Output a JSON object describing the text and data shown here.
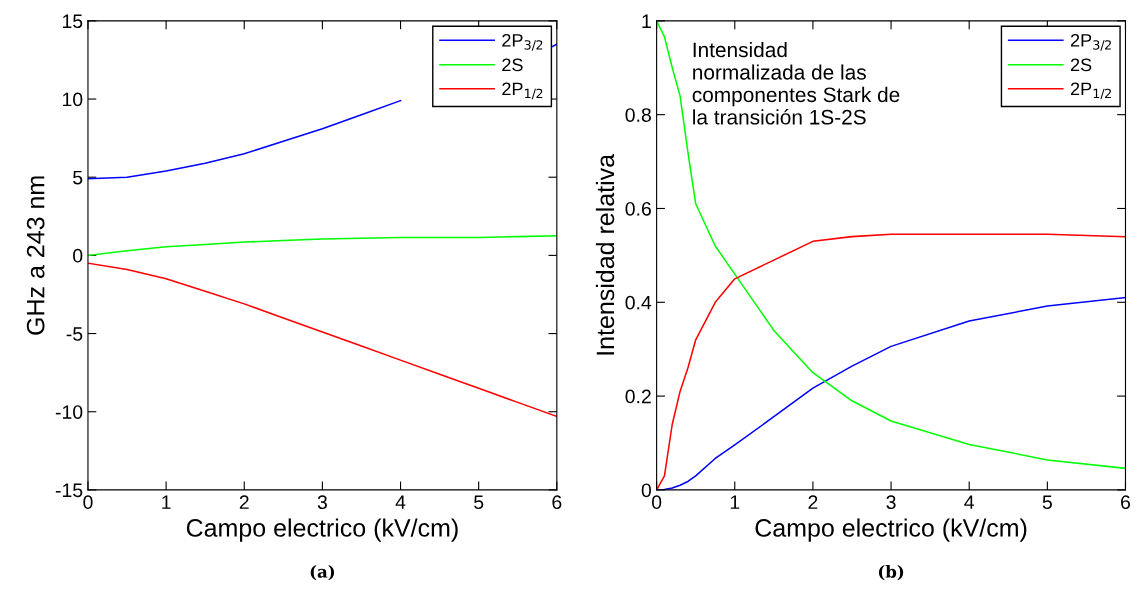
{
  "chart_data": [
    {
      "type": "line",
      "xlabel": "Campo electrico (kV/cm)",
      "ylabel": "GHz a 243 nm",
      "xlim": [
        0,
        6
      ],
      "xticks": [
        0,
        1,
        2,
        3,
        4,
        5,
        6
      ],
      "ylim": [
        -15,
        15
      ],
      "yticks": [
        -15,
        -10,
        -5,
        0,
        5,
        10,
        15
      ],
      "grid": false,
      "legend": "top right",
      "line_style": "solid",
      "annotations": [
        "(a)"
      ],
      "x": [
        0,
        0.5,
        1,
        1.5,
        2,
        2.5,
        3,
        3.5,
        4,
        4.5,
        5,
        5.5,
        6
      ],
      "series": [
        {
          "name": "2P$_{3/2}$",
          "color": "#0000ff",
          "x": [
            0,
            0.5,
            1,
            1.5,
            2,
            2.5,
            3,
            3.5,
            4,
            4.5,
            5.92,
            6
          ],
          "values": [
            4.9,
            5.0,
            5.4,
            5.9,
            6.5,
            7.3,
            8.1,
            9.0,
            9.9,
            null,
            13.3,
            13.5
          ]
        },
        {
          "name": "2S",
          "color": "#00ff00",
          "values": [
            0,
            0.3,
            0.55,
            0.7,
            0.85,
            0.95,
            1.05,
            1.1,
            1.15,
            1.15,
            1.15,
            1.2,
            1.25
          ]
        },
        {
          "name": "2P$_{1/2}$",
          "color": "#ff0000",
          "values": [
            -0.5,
            -0.9,
            -1.5,
            -2.3,
            -3.1,
            -4.0,
            -4.9,
            -5.8,
            -6.7,
            -7.6,
            -8.5,
            -9.4,
            -10.3
          ]
        }
      ]
    },
    {
      "type": "line",
      "xlabel": "Campo electrico (kV/cm)",
      "ylabel": "Intensidad relativa",
      "xlim": [
        0,
        6
      ],
      "xticks": [
        0,
        1,
        2,
        3,
        4,
        5,
        6
      ],
      "ylim": [
        0,
        1
      ],
      "yticks": [
        0,
        0.2,
        0.4,
        0.6,
        0.8,
        1
      ],
      "grid": false,
      "legend": "top right",
      "line_style": "solid",
      "annotations": [
        "Intensidad\nnormalizada de las\ncomponentes Stark de\nla transición 1S-2S",
        "(b)"
      ],
      "x": [
        0,
        0.1,
        0.2,
        0.3,
        0.4,
        0.5,
        0.75,
        1,
        1.5,
        2,
        2.5,
        3,
        4,
        5,
        6
      ],
      "series": [
        {
          "name": "2P$_{3/2}$",
          "color": "#0000ff",
          "values": [
            0,
            0.001,
            0.004,
            0.01,
            0.018,
            0.03,
            0.067,
            0.096,
            0.156,
            0.217,
            0.264,
            0.306,
            0.36,
            0.392,
            0.41
          ]
        },
        {
          "name": "2S",
          "color": "#00ff00",
          "values": [
            1.0,
            0.966,
            0.9,
            0.84,
            0.72,
            0.61,
            0.52,
            0.46,
            0.34,
            0.25,
            0.19,
            0.147,
            0.097,
            0.064,
            0.046
          ]
        },
        {
          "name": "2P$_{1/2}$",
          "color": "#ff0000",
          "values": [
            0,
            0.03,
            0.14,
            0.21,
            0.26,
            0.32,
            0.4,
            0.45,
            0.49,
            0.53,
            0.54,
            0.545,
            0.545,
            0.545,
            0.54
          ]
        }
      ]
    }
  ]
}
